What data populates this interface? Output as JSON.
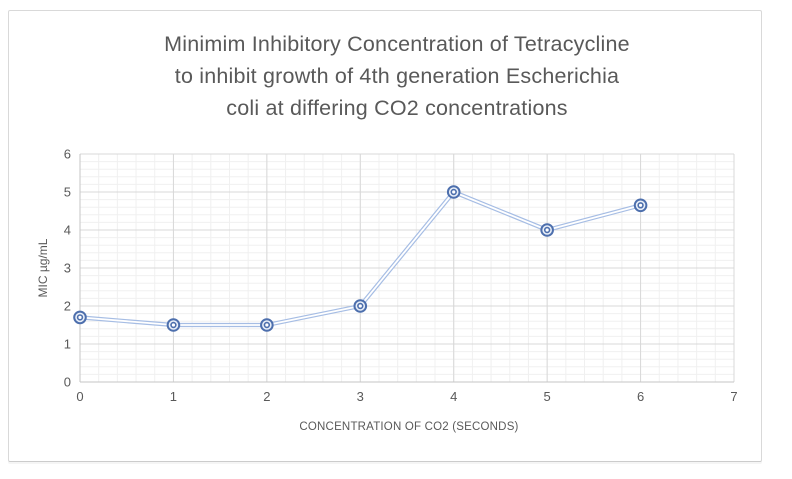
{
  "window": {
    "background": "#ffffff",
    "frame_border_color": "#d9d9d9"
  },
  "chart_data": {
    "type": "line",
    "title": "Minimim Inhibitory Concentration of Tetracycline to inhibit growth of 4th generation Escherichia coli at differing CO2 concentrations",
    "title_lines": [
      "Minimim Inhibitory Concentration of Tetracycline",
      "to inhibit growth of 4th generation Escherichia",
      "coli at differing CO2 concentrations"
    ],
    "xlabel": "CONCENTRATION OF CO2 (SECONDS)",
    "ylabel": "MIC µg/mL",
    "x": [
      0,
      1,
      2,
      3,
      4,
      5,
      6
    ],
    "y": [
      1.7,
      1.5,
      1.5,
      2,
      5,
      4,
      4.65
    ],
    "xlim": [
      0,
      7
    ],
    "ylim": [
      0,
      6
    ],
    "x_tick_step": 1,
    "y_tick_step": 1,
    "minor_grid_step": 0.2,
    "grid": "major-and-minor",
    "legend": "none",
    "marker_style": "double-circle",
    "line_style": "double-line",
    "colors": {
      "line": "#a6bde4",
      "line_core": "#ffffff",
      "marker_ring": "#4d6fad",
      "marker_fill": "#e9eff8",
      "marker_center": "#ffffff",
      "grid_major": "#d8d8d8",
      "grid_minor": "#f0f0f0",
      "axis_line": "#c6c6c6",
      "text": "#595959"
    }
  }
}
